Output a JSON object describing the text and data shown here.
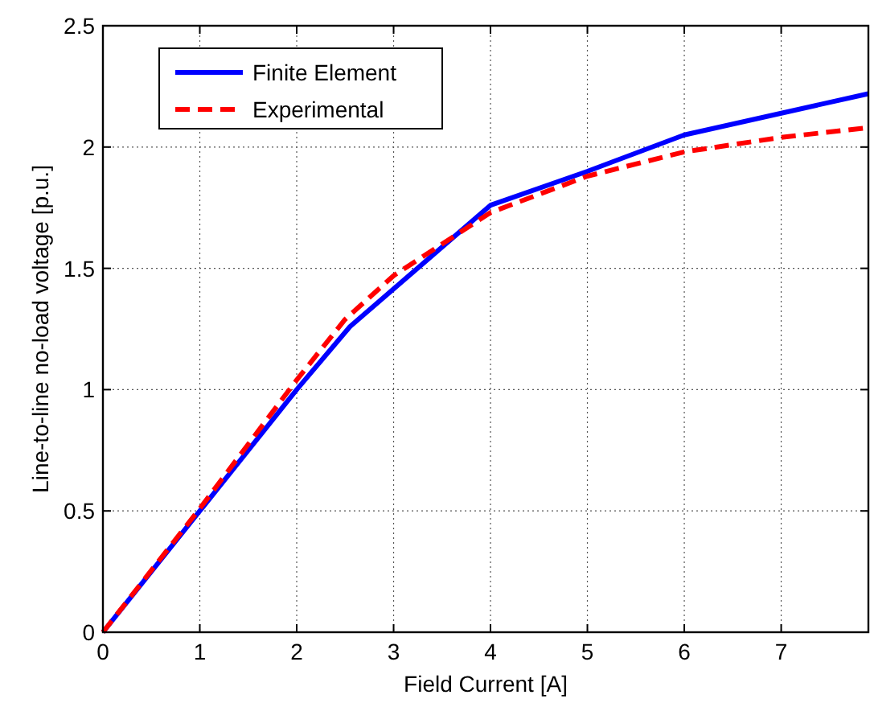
{
  "chart_data": {
    "type": "line",
    "xlabel": "Field Current [A]",
    "ylabel": "Line-to-line no-load voltage [p.u.]",
    "xlim": [
      0,
      7.9
    ],
    "ylim": [
      0,
      2.5
    ],
    "xticks": [
      0,
      1,
      2,
      3,
      4,
      5,
      6,
      7
    ],
    "yticks": [
      0,
      0.5,
      1,
      1.5,
      2,
      2.5
    ],
    "grid": true,
    "legend": "top left",
    "marker": "none",
    "series": [
      {
        "name": "Finite Element",
        "color": "#0000ff",
        "line_style": "solid",
        "x": [
          0,
          1,
          2,
          2.55,
          4,
          5,
          6,
          7.9
        ],
        "values": [
          0,
          0.5,
          1.0,
          1.26,
          1.76,
          1.9,
          2.05,
          2.22
        ]
      },
      {
        "name": "Experimental",
        "color": "#ff0000",
        "line_style": "dashed",
        "x": [
          0,
          1,
          2,
          2.5,
          3,
          4,
          5,
          6,
          7,
          7.9
        ],
        "values": [
          0,
          0.51,
          1.04,
          1.29,
          1.47,
          1.73,
          1.88,
          1.98,
          2.04,
          2.08
        ]
      }
    ]
  }
}
